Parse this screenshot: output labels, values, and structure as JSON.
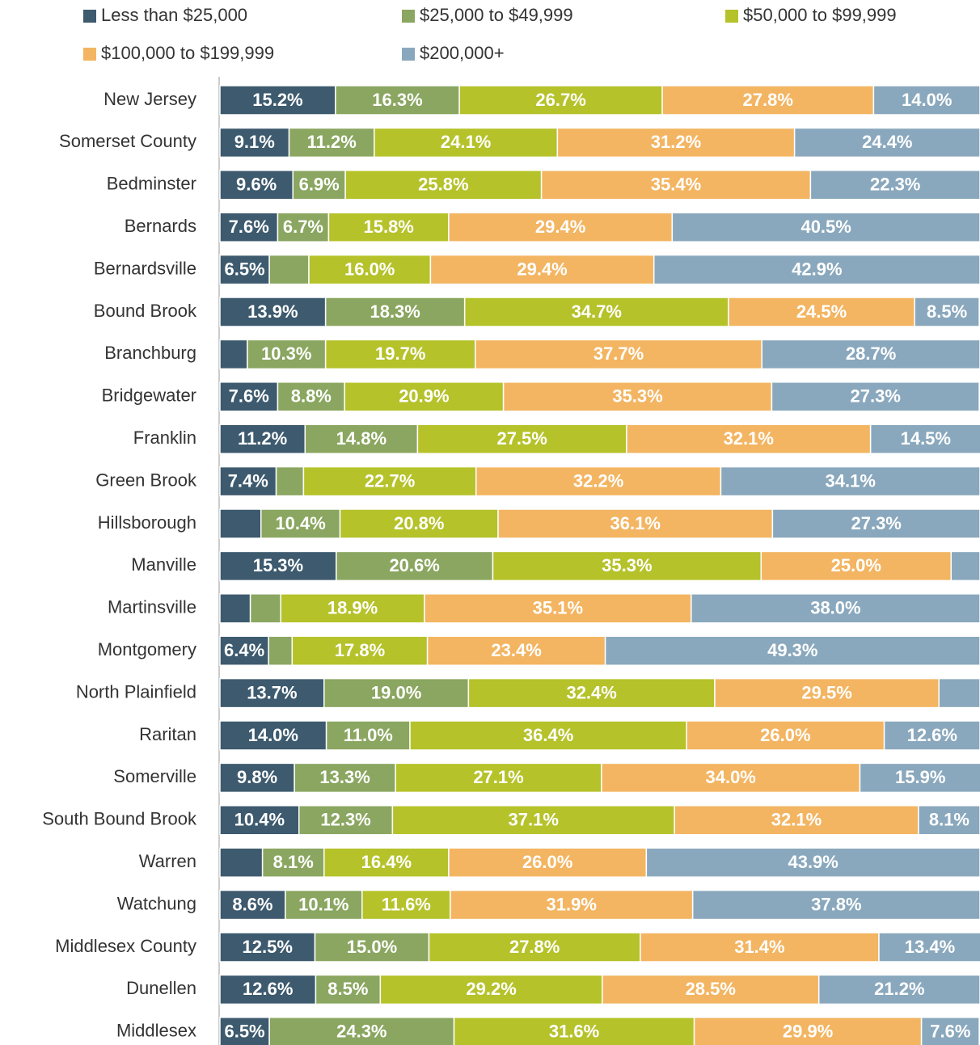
{
  "chart_data": {
    "type": "stacked_bar_horizontal",
    "categories": [
      "New Jersey",
      "Somerset County",
      "Bedminster",
      "Bernards",
      "Bernardsville",
      "Bound Brook",
      "Branchburg",
      "Bridgewater",
      "Franklin",
      "Green Brook",
      "Hillsborough",
      "Manville",
      "Martinsville",
      "Montgomery",
      "North Plainfield",
      "Raritan",
      "Somerville",
      "South Bound Brook",
      "Warren",
      "Watchung",
      "Middlesex County",
      "Dunellen",
      "Middlesex"
    ],
    "xlim": [
      0,
      100
    ],
    "series": [
      {
        "name": "Less than $25,000",
        "color": "#3d5a6e",
        "values": [
          15.2,
          9.1,
          9.6,
          7.6,
          6.5,
          13.9,
          3.6,
          7.6,
          11.2,
          7.4,
          5.4,
          15.3,
          4.0,
          6.4,
          13.7,
          14.0,
          9.8,
          10.4,
          5.6,
          8.6,
          12.5,
          12.6,
          6.5
        ],
        "value_labels": [
          "15.2%",
          "9.1%",
          "9.6%",
          "7.6%",
          "6.5%",
          "13.9%",
          null,
          "7.6%",
          "11.2%",
          "7.4%",
          null,
          "15.3%",
          null,
          "6.4%",
          "13.7%",
          "14.0%",
          "9.8%",
          "10.4%",
          null,
          "8.6%",
          "12.5%",
          "12.6%",
          "6.5%"
        ]
      },
      {
        "name": "$25,000 to $49,999",
        "color": "#8aa660",
        "values": [
          16.3,
          11.2,
          6.9,
          6.7,
          5.2,
          18.3,
          10.3,
          8.8,
          14.8,
          3.6,
          10.4,
          20.6,
          4.0,
          3.1,
          19.0,
          11.0,
          13.3,
          12.3,
          8.1,
          10.1,
          15.0,
          8.5,
          24.3
        ],
        "value_labels": [
          "16.3%",
          "11.2%",
          "6.9%",
          "6.7%",
          null,
          "18.3%",
          "10.3%",
          "8.8%",
          "14.8%",
          null,
          "10.4%",
          "20.6%",
          null,
          null,
          "19.0%",
          "11.0%",
          "13.3%",
          "12.3%",
          "8.1%",
          "10.1%",
          "15.0%",
          "8.5%",
          "24.3%"
        ]
      },
      {
        "name": "$50,000 to $99,999",
        "color": "#b5c22a",
        "values": [
          26.7,
          24.1,
          25.8,
          15.8,
          16.0,
          34.7,
          19.7,
          20.9,
          27.5,
          22.7,
          20.8,
          35.3,
          18.9,
          17.8,
          32.4,
          36.4,
          27.1,
          37.1,
          16.4,
          11.6,
          27.8,
          29.2,
          31.6
        ],
        "value_labels": [
          "26.7%",
          "24.1%",
          "25.8%",
          "15.8%",
          "16.0%",
          "34.7%",
          "19.7%",
          "20.9%",
          "27.5%",
          "22.7%",
          "20.8%",
          "35.3%",
          "18.9%",
          "17.8%",
          "32.4%",
          "36.4%",
          "27.1%",
          "37.1%",
          "16.4%",
          "11.6%",
          "27.8%",
          "29.2%",
          "31.6%"
        ]
      },
      {
        "name": "$100,000 to $199,999",
        "color": "#f3b562",
        "values": [
          27.8,
          31.2,
          35.4,
          29.4,
          29.4,
          24.5,
          37.7,
          35.3,
          32.1,
          32.2,
          36.1,
          25.0,
          35.1,
          23.4,
          29.5,
          26.0,
          34.0,
          32.1,
          26.0,
          31.9,
          31.4,
          28.5,
          29.9
        ],
        "value_labels": [
          "27.8%",
          "31.2%",
          "35.4%",
          "29.4%",
          "29.4%",
          "24.5%",
          "37.7%",
          "35.3%",
          "32.1%",
          "32.2%",
          "36.1%",
          "25.0%",
          "35.1%",
          "23.4%",
          "29.5%",
          "26.0%",
          "34.0%",
          "32.1%",
          "26.0%",
          "31.9%",
          "31.4%",
          "28.5%",
          "29.9%"
        ]
      },
      {
        "name": "$200,000+",
        "color": "#8aa8bd",
        "values": [
          14.0,
          24.4,
          22.3,
          40.5,
          42.9,
          8.5,
          28.7,
          27.3,
          14.5,
          34.1,
          27.3,
          3.8,
          38.0,
          49.3,
          5.4,
          12.6,
          15.9,
          8.1,
          43.9,
          37.8,
          13.4,
          21.2,
          7.6
        ],
        "value_labels": [
          "14.0%",
          "24.4%",
          "22.3%",
          "40.5%",
          "42.9%",
          "8.5%",
          "28.7%",
          "27.3%",
          "14.5%",
          "34.1%",
          "27.3%",
          null,
          "38.0%",
          "49.3%",
          null,
          "12.6%",
          "15.9%",
          "8.1%",
          "43.9%",
          "37.8%",
          "13.4%",
          "21.2%",
          "7.6%"
        ]
      }
    ]
  }
}
